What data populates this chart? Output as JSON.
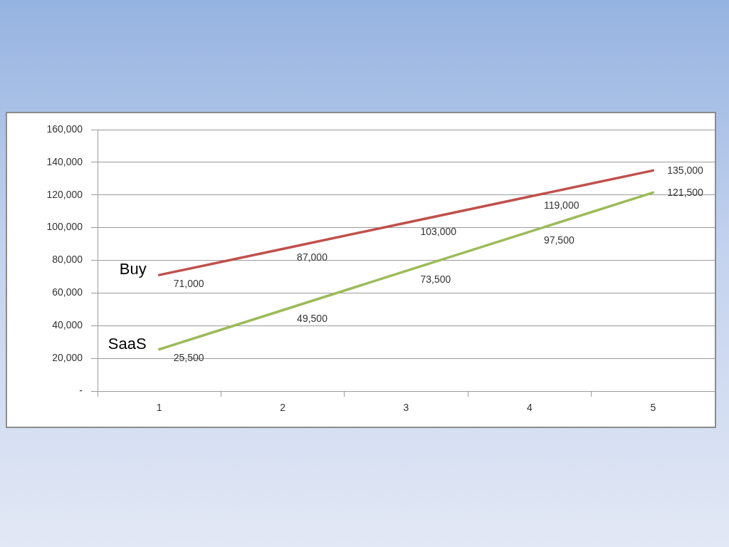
{
  "chart_data": {
    "type": "line",
    "categories": [
      "1",
      "2",
      "3",
      "4",
      "5"
    ],
    "series": [
      {
        "name": "Buy",
        "color": "#c0504d",
        "values": [
          71000,
          87000,
          103000,
          119000,
          135000
        ],
        "value_labels": [
          "71,000",
          "87,000",
          "103,000",
          "119,000",
          "135,000"
        ]
      },
      {
        "name": "SaaS",
        "color": "#9bbb59",
        "values": [
          25500,
          49500,
          73500,
          97500,
          121500
        ],
        "value_labels": [
          "25,500",
          "49,500",
          "73,500",
          "97,500",
          "121,500"
        ]
      }
    ],
    "ylim": [
      0,
      160000
    ],
    "yticks": [
      {
        "value": 0,
        "label": "-"
      },
      {
        "value": 20000,
        "label": "20,000"
      },
      {
        "value": 40000,
        "label": "40,000"
      },
      {
        "value": 60000,
        "label": "60,000"
      },
      {
        "value": 80000,
        "label": "80,000"
      },
      {
        "value": 100000,
        "label": "100,000"
      },
      {
        "value": 120000,
        "label": "120,000"
      },
      {
        "value": 140000,
        "label": "140,000"
      },
      {
        "value": 160000,
        "label": "160,000"
      }
    ],
    "grid": "y",
    "marker": "none",
    "line_style": "solid"
  }
}
